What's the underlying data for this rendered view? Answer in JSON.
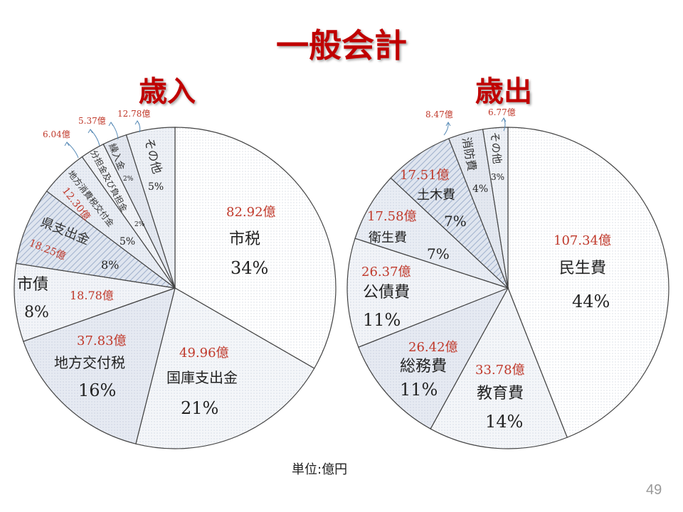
{
  "title": "一般会計",
  "unit_note": "単位:億円",
  "page_number": "49",
  "chart_data": [
    {
      "type": "pie",
      "title": "歳入",
      "slices": [
        {
          "label": "市税",
          "amount": "82.92億",
          "percent": "34%",
          "value": 34,
          "fill": "#ffffff"
        },
        {
          "label": "国庫支出金",
          "amount": "49.96億",
          "percent": "21%",
          "value": 21,
          "fill": "#f4f6f9"
        },
        {
          "label": "地方交付税",
          "amount": "37.83億",
          "percent": "16%",
          "value": 16,
          "fill": "#e6eaf2"
        },
        {
          "label": "市債",
          "amount": "18.78億",
          "percent": "8%",
          "value": 8,
          "fill": "#f2f4f8"
        },
        {
          "label": "県支出金",
          "amount": "18.25億",
          "percent": "8%",
          "value": 8,
          "fill": "#d3dbe8"
        },
        {
          "label": "地方消費税交付金",
          "amount": "12.30億",
          "percent": "5%",
          "value": 5,
          "fill": "#e9edf4"
        },
        {
          "label": "分担金及び負担金",
          "amount": "6.04億",
          "percent": "2%",
          "value": 2.5,
          "fill": "#f1f3f7"
        },
        {
          "label": "繰入金",
          "amount": "5.37億",
          "percent": "2%",
          "value": 2.5,
          "fill": "#e4e8f0"
        },
        {
          "label": "その他",
          "amount": "12.78億",
          "percent": "5%",
          "value": 5,
          "fill": "#eef1f6"
        }
      ]
    },
    {
      "type": "pie",
      "title": "歳出",
      "slices": [
        {
          "label": "民生費",
          "amount": "107.34億",
          "percent": "44%",
          "value": 44,
          "fill": "#ffffff"
        },
        {
          "label": "教育費",
          "amount": "33.78億",
          "percent": "14%",
          "value": 14,
          "fill": "#f4f6f9"
        },
        {
          "label": "総務費",
          "amount": "26.42億",
          "percent": "11%",
          "value": 11,
          "fill": "#e6eaf2"
        },
        {
          "label": "公債費",
          "amount": "26.37億",
          "percent": "11%",
          "value": 11,
          "fill": "#f2f4f8"
        },
        {
          "label": "衛生費",
          "amount": "17.58億",
          "percent": "7%",
          "value": 7,
          "fill": "#e9edf4"
        },
        {
          "label": "土木費",
          "amount": "17.51億",
          "percent": "7%",
          "value": 7,
          "fill": "#d3dbe8"
        },
        {
          "label": "消防費",
          "amount": "8.47億",
          "percent": "4%",
          "value": 3.5,
          "fill": "#e4e8f0"
        },
        {
          "label": "その他",
          "amount": "6.77億",
          "percent": "3%",
          "value": 2.5,
          "fill": "#eef1f6"
        }
      ]
    }
  ]
}
